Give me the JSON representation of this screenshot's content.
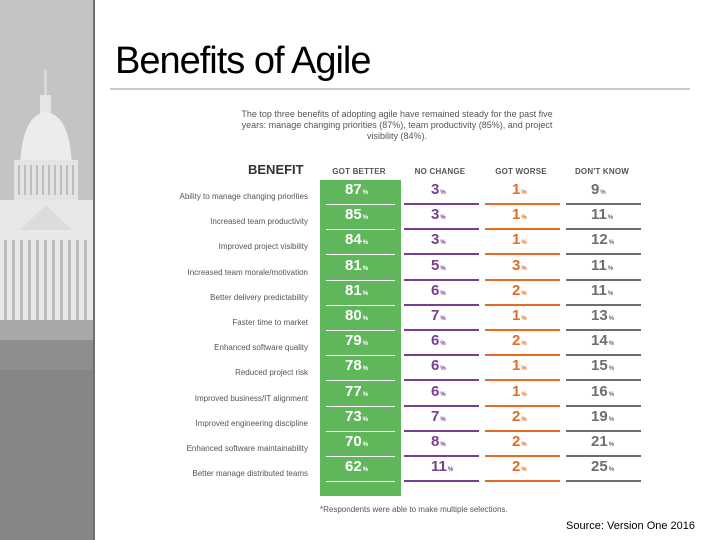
{
  "slide": {
    "title": "Benefits of Agile",
    "source": "Source: Version One 2016"
  },
  "sidebar": {
    "image_icon": "capitol-building-image",
    "colors": {
      "sky": "#c4c4c4",
      "building": "#e8e8e8",
      "ground": "#8e8e8e"
    }
  },
  "infographic": {
    "intro": "The top three benefits of adopting agile have remained steady for the past five years: manage changing priorities (87%), team productivity (85%), and project visibility (84%).",
    "header_benefit": "BENEFIT",
    "headers": [
      "GOT BETTER",
      "NO CHANGE",
      "GOT WORSE",
      "DON'T KNOW"
    ],
    "pct_symbol": "%",
    "colors": {
      "got_better": "#5fb65b",
      "no_change": "#7a3f90",
      "got_worse": "#e46b1f",
      "dont_know": "#6e6e6e"
    },
    "rows": [
      {
        "benefit": "Ability to manage changing priorities",
        "values": [
          "87",
          "3",
          "1",
          "9"
        ]
      },
      {
        "benefit": "Increased team productivity",
        "values": [
          "85",
          "3",
          "1",
          "11"
        ]
      },
      {
        "benefit": "Improved project visibility",
        "values": [
          "84",
          "3",
          "1",
          "12"
        ]
      },
      {
        "benefit": "Increased team morale/motivation",
        "values": [
          "81",
          "5",
          "3",
          "11"
        ]
      },
      {
        "benefit": "Better delivery predictability",
        "values": [
          "81",
          "6",
          "2",
          "11"
        ]
      },
      {
        "benefit": "Faster time to market",
        "values": [
          "80",
          "7",
          "1",
          "13"
        ]
      },
      {
        "benefit": "Enhanced software quality",
        "values": [
          "79",
          "6",
          "2",
          "14"
        ]
      },
      {
        "benefit": "Reduced project risk",
        "values": [
          "78",
          "6",
          "1",
          "15"
        ]
      },
      {
        "benefit": "Improved business/IT alignment",
        "values": [
          "77",
          "6",
          "1",
          "16"
        ]
      },
      {
        "benefit": "Improved engineering discipline",
        "values": [
          "73",
          "7",
          "2",
          "19"
        ]
      },
      {
        "benefit": "Enhanced software maintainability",
        "values": [
          "70",
          "8",
          "2",
          "21"
        ]
      },
      {
        "benefit": "Better manage distributed teams",
        "values": [
          "62",
          "11",
          "2",
          "25"
        ]
      }
    ],
    "footnote": "*Respondents were able to make multiple selections."
  }
}
